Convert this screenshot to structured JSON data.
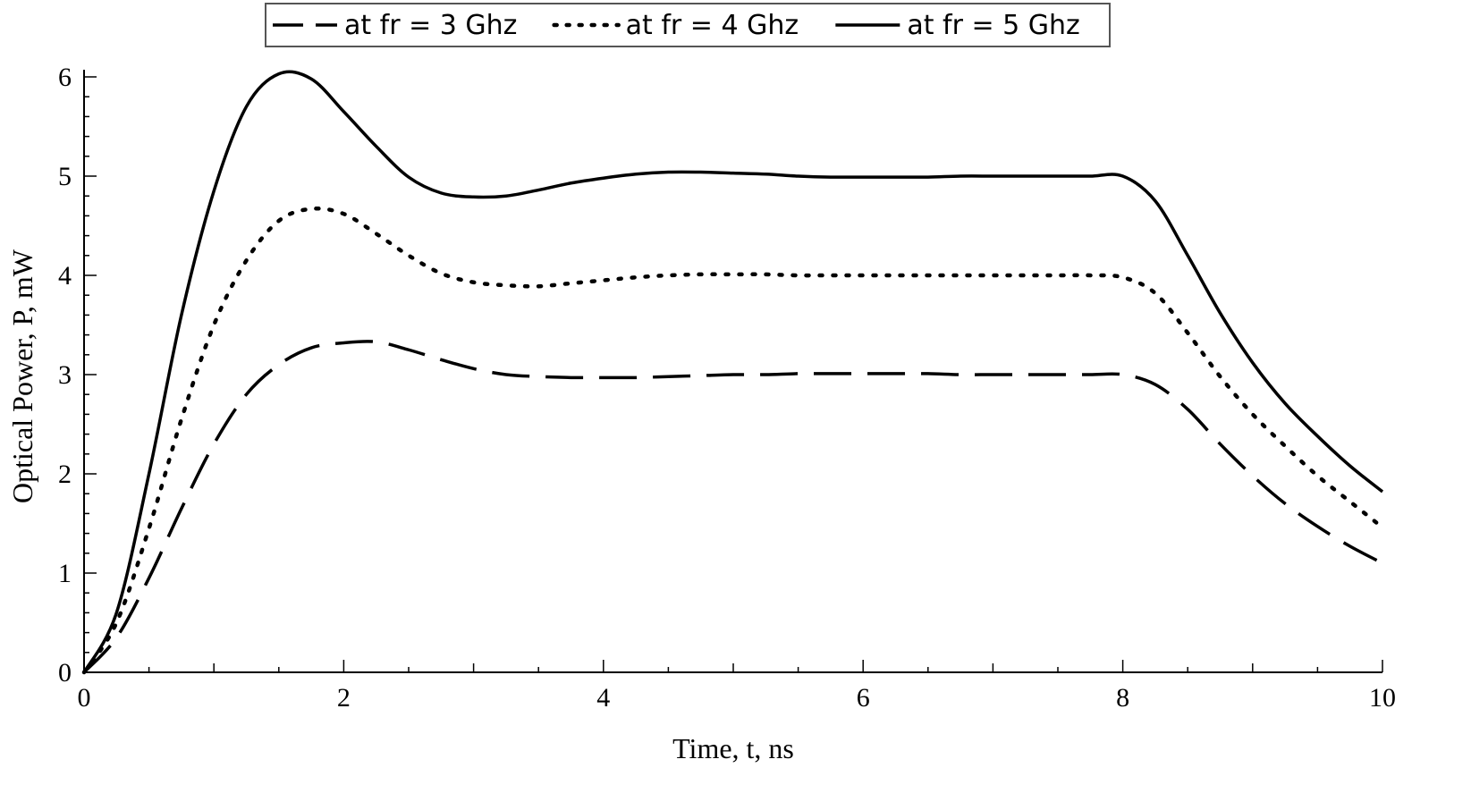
{
  "chart_data": {
    "type": "line",
    "title": "",
    "xlabel": "Time, t, ns",
    "ylabel": "Optical Power, P, mW",
    "xlim": [
      0,
      10
    ],
    "ylim": [
      0,
      6
    ],
    "xticks": [
      0,
      2,
      4,
      6,
      8,
      10
    ],
    "yticks": [
      0,
      1,
      2,
      3,
      4,
      5,
      6
    ],
    "grid": false,
    "legend_position": "top-center",
    "x": [
      0,
      0.25,
      0.5,
      0.75,
      1.0,
      1.25,
      1.5,
      1.75,
      2.0,
      2.25,
      2.5,
      2.75,
      3.0,
      3.25,
      3.5,
      3.75,
      4.0,
      4.25,
      4.5,
      4.75,
      5.0,
      5.25,
      5.5,
      5.75,
      6.0,
      6.25,
      6.5,
      6.75,
      7.0,
      7.25,
      7.5,
      7.75,
      8.0,
      8.25,
      8.5,
      8.75,
      9.0,
      9.25,
      9.5,
      9.75,
      10.0
    ],
    "series": [
      {
        "name": "at fr = 3 Ghz",
        "style": "dashed",
        "values": [
          0,
          0.35,
          0.95,
          1.65,
          2.3,
          2.8,
          3.1,
          3.27,
          3.32,
          3.33,
          3.25,
          3.15,
          3.06,
          3.0,
          2.98,
          2.97,
          2.97,
          2.97,
          2.98,
          2.99,
          3.0,
          3.0,
          3.01,
          3.01,
          3.01,
          3.01,
          3.01,
          3.0,
          3.0,
          3.0,
          3.0,
          3.0,
          3.0,
          2.9,
          2.65,
          2.3,
          1.98,
          1.7,
          1.47,
          1.27,
          1.1
        ]
      },
      {
        "name": "at fr = 4 Ghz",
        "style": "dotted",
        "values": [
          0,
          0.5,
          1.45,
          2.55,
          3.5,
          4.15,
          4.55,
          4.67,
          4.62,
          4.42,
          4.2,
          4.02,
          3.93,
          3.9,
          3.89,
          3.92,
          3.95,
          3.98,
          4.0,
          4.01,
          4.01,
          4.01,
          4.0,
          4.0,
          4.0,
          4.0,
          4.0,
          4.0,
          4.0,
          4.0,
          4.0,
          4.0,
          3.98,
          3.82,
          3.42,
          2.98,
          2.6,
          2.28,
          1.98,
          1.72,
          1.46
        ]
      },
      {
        "name": "at fr = 5 Ghz",
        "style": "solid",
        "values": [
          0,
          0.6,
          2.0,
          3.6,
          4.85,
          5.7,
          6.03,
          5.98,
          5.65,
          5.3,
          4.99,
          4.83,
          4.79,
          4.8,
          4.86,
          4.93,
          4.98,
          5.02,
          5.04,
          5.04,
          5.03,
          5.02,
          5.0,
          4.99,
          4.99,
          4.99,
          4.99,
          5.0,
          5.0,
          5.0,
          5.0,
          5.0,
          5.0,
          4.75,
          4.2,
          3.62,
          3.12,
          2.71,
          2.38,
          2.08,
          1.82
        ]
      }
    ]
  }
}
